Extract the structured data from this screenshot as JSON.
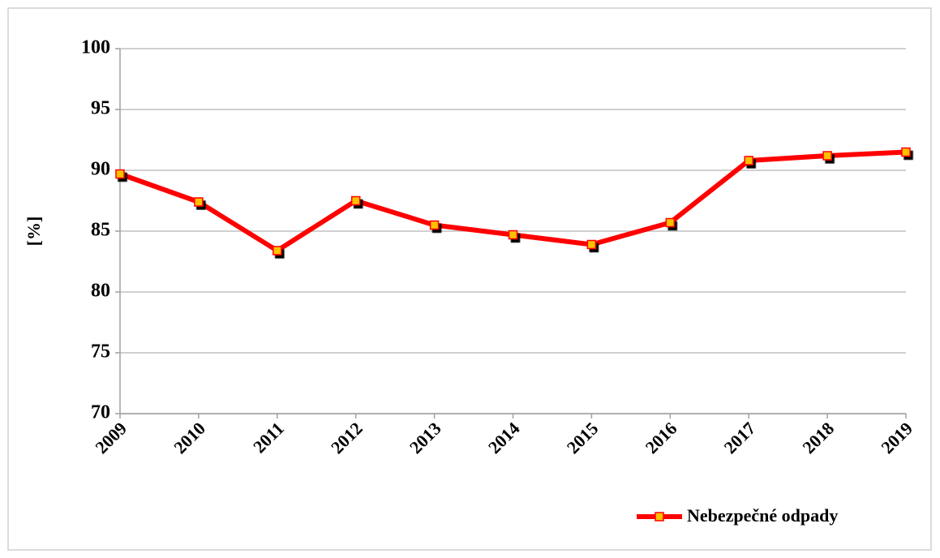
{
  "chart_data": {
    "type": "line",
    "y_label": "[%]",
    "categories": [
      "2009",
      "2010",
      "2011",
      "2012",
      "2013",
      "2014",
      "2015",
      "2016",
      "2017",
      "2018",
      "2019"
    ],
    "series": [
      {
        "name": "Nebezpečné odpady",
        "color": "#ff0000",
        "marker_color": "#ffc000",
        "values": [
          89.7,
          87.4,
          83.4,
          87.5,
          85.5,
          84.7,
          83.9,
          85.7,
          90.8,
          91.2,
          91.5
        ]
      }
    ],
    "ylim": [
      70,
      100
    ],
    "yticks": [
      70,
      75,
      80,
      85,
      90,
      95,
      100
    ],
    "grid": true,
    "legend": "bottom-right"
  }
}
